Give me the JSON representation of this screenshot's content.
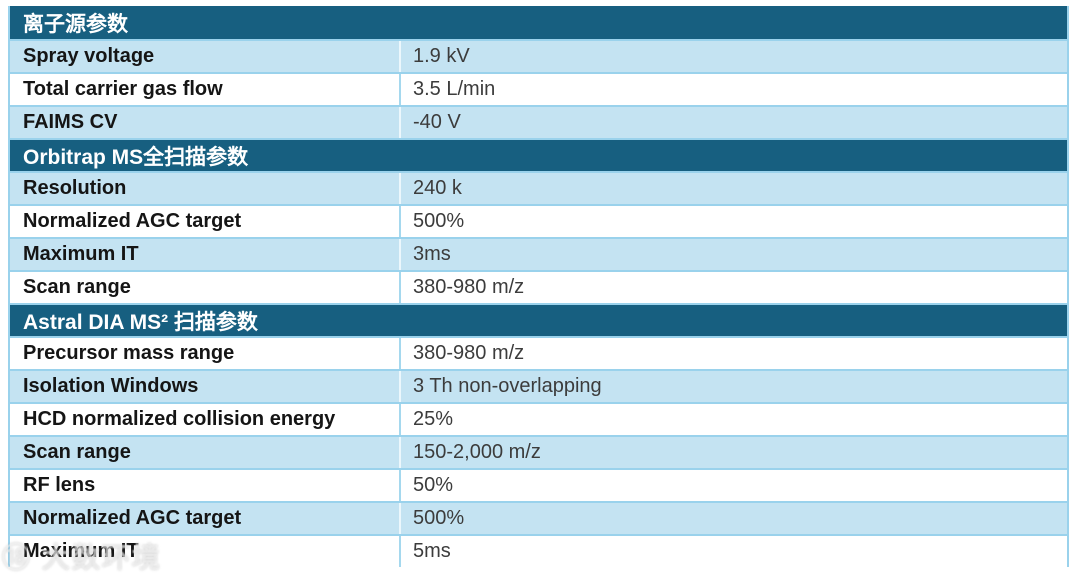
{
  "colors": {
    "section_header_bg": "#175f80",
    "section_header_text": "#ffffff",
    "row_blue_bg": "#c4e3f2",
    "row_white_bg": "#ffffff",
    "grid_border": "#9ad2ec",
    "label_text": "#151515",
    "value_text": "#3c3c3c"
  },
  "watermark": {
    "text": "⑱ 大数环境"
  },
  "table": {
    "rows": [
      {
        "type": "section",
        "label": "离子源参数"
      },
      {
        "type": "data",
        "label": "Spray voltage",
        "value": "1.9 kV"
      },
      {
        "type": "data",
        "label": "Total carrier gas flow",
        "value": "3.5 L/min"
      },
      {
        "type": "data",
        "label": "FAIMS CV",
        "value": "-40 V"
      },
      {
        "type": "section",
        "label": "Orbitrap MS全扫描参数"
      },
      {
        "type": "data",
        "label": "Resolution",
        "value": "240 k"
      },
      {
        "type": "data",
        "label": "Normalized AGC target",
        "value": "500%"
      },
      {
        "type": "data",
        "label": "Maximum IT",
        "value": "3ms"
      },
      {
        "type": "data",
        "label": "Scan range",
        "value": "380-980 m/z"
      },
      {
        "type": "section",
        "label": "Astral DIA MS² 扫描参数"
      },
      {
        "type": "data",
        "label": "Precursor mass range",
        "value": "380-980 m/z"
      },
      {
        "type": "data",
        "label": "Isolation Windows",
        "value": "3 Th non-overlapping"
      },
      {
        "type": "data",
        "label": "HCD normalized collision energy",
        "value": "25%"
      },
      {
        "type": "data",
        "label": "Scan range",
        "value": "150-2,000 m/z"
      },
      {
        "type": "data",
        "label": "RF lens",
        "value": "50%"
      },
      {
        "type": "data",
        "label": "Normalized AGC target",
        "value": "500%"
      },
      {
        "type": "data",
        "label": "Maximum IT",
        "value": "5ms"
      }
    ]
  }
}
